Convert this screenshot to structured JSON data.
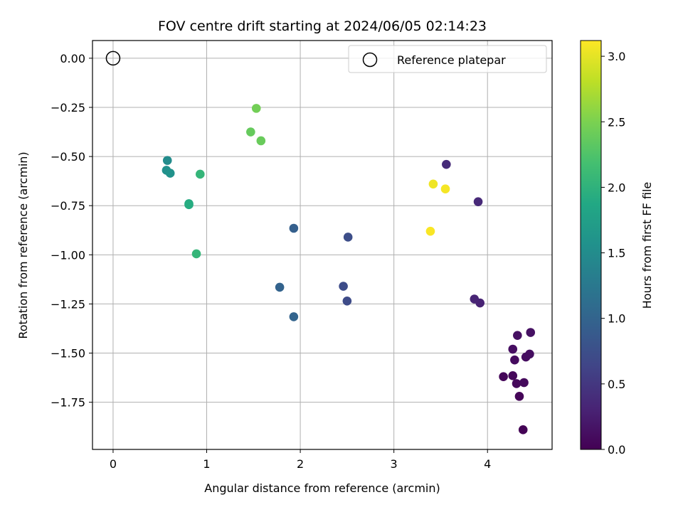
{
  "chart_data": {
    "type": "scatter",
    "title": "FOV centre drift starting at 2024/06/05 02:14:23",
    "xlabel": "Angular distance from reference (arcmin)",
    "ylabel": "Rotation from reference (arcmin)",
    "xlim": [
      -0.22,
      4.69
    ],
    "ylim": [
      -1.99,
      0.09
    ],
    "xticks": [
      0,
      1,
      2,
      3,
      4
    ],
    "xtick_labels": [
      "0",
      "1",
      "2",
      "3",
      "4"
    ],
    "yticks": [
      0.0,
      -0.25,
      -0.5,
      -0.75,
      -1.0,
      -1.25,
      -1.5,
      -1.75
    ],
    "ytick_labels": [
      "0.00",
      "−0.25",
      "−0.50",
      "−0.75",
      "−1.00",
      "−1.25",
      "−1.50",
      "−1.75"
    ],
    "grid": true,
    "legend": {
      "position": "top-right",
      "entries": [
        "Reference platepar"
      ]
    },
    "reference_point": {
      "name": "Reference platepar",
      "x": 0.0,
      "y": 0.0
    },
    "colorbar": {
      "label": "Hours from first FF file",
      "min": 0.0,
      "max": 3.12,
      "colormap": "viridis",
      "ticks": [
        0.0,
        0.5,
        1.0,
        1.5,
        2.0,
        2.5,
        3.0
      ],
      "tick_labels": [
        "0.0",
        "0.5",
        "1.0",
        "1.5",
        "2.0",
        "2.5",
        "3.0"
      ]
    },
    "points": [
      {
        "x": 4.38,
        "y": -1.89,
        "c": 0.02
      },
      {
        "x": 4.34,
        "y": -1.72,
        "c": 0.04
      },
      {
        "x": 4.17,
        "y": -1.62,
        "c": 0.05
      },
      {
        "x": 4.27,
        "y": -1.615,
        "c": 0.06
      },
      {
        "x": 4.31,
        "y": -1.655,
        "c": 0.07
      },
      {
        "x": 4.39,
        "y": -1.65,
        "c": 0.08
      },
      {
        "x": 4.29,
        "y": -1.535,
        "c": 0.09
      },
      {
        "x": 4.41,
        "y": -1.52,
        "c": 0.1
      },
      {
        "x": 4.45,
        "y": -1.505,
        "c": 0.11
      },
      {
        "x": 4.27,
        "y": -1.48,
        "c": 0.12
      },
      {
        "x": 4.32,
        "y": -1.41,
        "c": 0.13
      },
      {
        "x": 4.46,
        "y": -1.395,
        "c": 0.14
      },
      {
        "x": 3.92,
        "y": -1.245,
        "c": 0.3
      },
      {
        "x": 3.86,
        "y": -1.225,
        "c": 0.32
      },
      {
        "x": 3.9,
        "y": -0.73,
        "c": 0.36
      },
      {
        "x": 3.56,
        "y": -0.54,
        "c": 0.38
      },
      {
        "x": 2.5,
        "y": -1.235,
        "c": 0.7
      },
      {
        "x": 2.46,
        "y": -1.16,
        "c": 0.72
      },
      {
        "x": 2.51,
        "y": -0.91,
        "c": 0.74
      },
      {
        "x": 1.93,
        "y": -0.865,
        "c": 0.95
      },
      {
        "x": 1.78,
        "y": -1.165,
        "c": 0.98
      },
      {
        "x": 1.93,
        "y": -1.315,
        "c": 1.0
      },
      {
        "x": 0.58,
        "y": -0.52,
        "c": 1.5
      },
      {
        "x": 0.57,
        "y": -0.57,
        "c": 1.55
      },
      {
        "x": 0.61,
        "y": -0.585,
        "c": 1.58
      },
      {
        "x": 0.81,
        "y": -0.74,
        "c": 1.9
      },
      {
        "x": 0.81,
        "y": -0.745,
        "c": 1.92
      },
      {
        "x": 0.93,
        "y": -0.59,
        "c": 2.05
      },
      {
        "x": 0.89,
        "y": -0.995,
        "c": 2.05
      },
      {
        "x": 1.47,
        "y": -0.375,
        "c": 2.38
      },
      {
        "x": 1.58,
        "y": -0.42,
        "c": 2.4
      },
      {
        "x": 1.53,
        "y": -0.255,
        "c": 2.45
      },
      {
        "x": 3.42,
        "y": -0.64,
        "c": 3.05
      },
      {
        "x": 3.55,
        "y": -0.665,
        "c": 3.08
      },
      {
        "x": 3.39,
        "y": -0.88,
        "c": 3.1
      }
    ]
  }
}
